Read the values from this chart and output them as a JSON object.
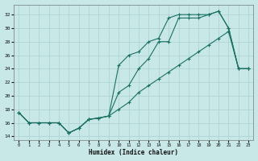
{
  "xlabel": "Humidex (Indice chaleur)",
  "background_color": "#c8e8e8",
  "grid_color": "#aad0d0",
  "line_color": "#1a7060",
  "xlim": [
    -0.5,
    23.5
  ],
  "ylim": [
    13.5,
    33.5
  ],
  "xticks": [
    0,
    1,
    2,
    3,
    4,
    5,
    6,
    7,
    8,
    9,
    10,
    11,
    12,
    13,
    14,
    15,
    16,
    17,
    18,
    19,
    20,
    21,
    22,
    23
  ],
  "yticks": [
    14,
    16,
    18,
    20,
    22,
    24,
    26,
    28,
    30,
    32
  ],
  "line1_x": [
    0,
    1,
    2,
    3,
    4,
    5,
    6,
    7,
    8,
    9,
    10,
    11,
    12,
    13,
    14,
    15,
    16,
    17,
    18,
    19,
    20,
    21,
    22,
    23
  ],
  "line1_y": [
    17.5,
    16.0,
    16.0,
    16.0,
    16.0,
    14.5,
    15.2,
    16.5,
    16.7,
    17.0,
    18.0,
    19.0,
    20.5,
    21.5,
    22.5,
    23.5,
    24.5,
    25.5,
    26.5,
    27.5,
    28.5,
    29.5,
    24.0,
    24.0
  ],
  "line2_x": [
    0,
    1,
    2,
    3,
    4,
    5,
    6,
    7,
    8,
    9,
    10,
    11,
    12,
    13,
    14,
    15,
    16,
    17,
    18,
    19,
    20,
    21,
    22,
    23
  ],
  "line2_y": [
    17.5,
    16.0,
    16.0,
    16.0,
    16.0,
    14.5,
    15.2,
    16.5,
    16.7,
    17.0,
    20.5,
    21.5,
    24.0,
    25.5,
    28.0,
    28.0,
    31.5,
    31.5,
    31.5,
    32.0,
    32.5,
    30.0,
    24.0,
    24.0
  ],
  "line3_x": [
    0,
    1,
    2,
    3,
    4,
    5,
    6,
    7,
    8,
    9,
    10,
    11,
    12,
    13,
    14,
    15,
    16,
    17,
    18,
    19,
    20,
    21,
    22,
    23
  ],
  "line3_y": [
    17.5,
    16.0,
    16.0,
    16.0,
    16.0,
    14.5,
    15.2,
    16.5,
    16.7,
    17.0,
    24.5,
    26.0,
    26.5,
    28.0,
    28.5,
    31.5,
    32.0,
    32.0,
    32.0,
    32.0,
    32.5,
    30.0,
    24.0,
    24.0
  ]
}
